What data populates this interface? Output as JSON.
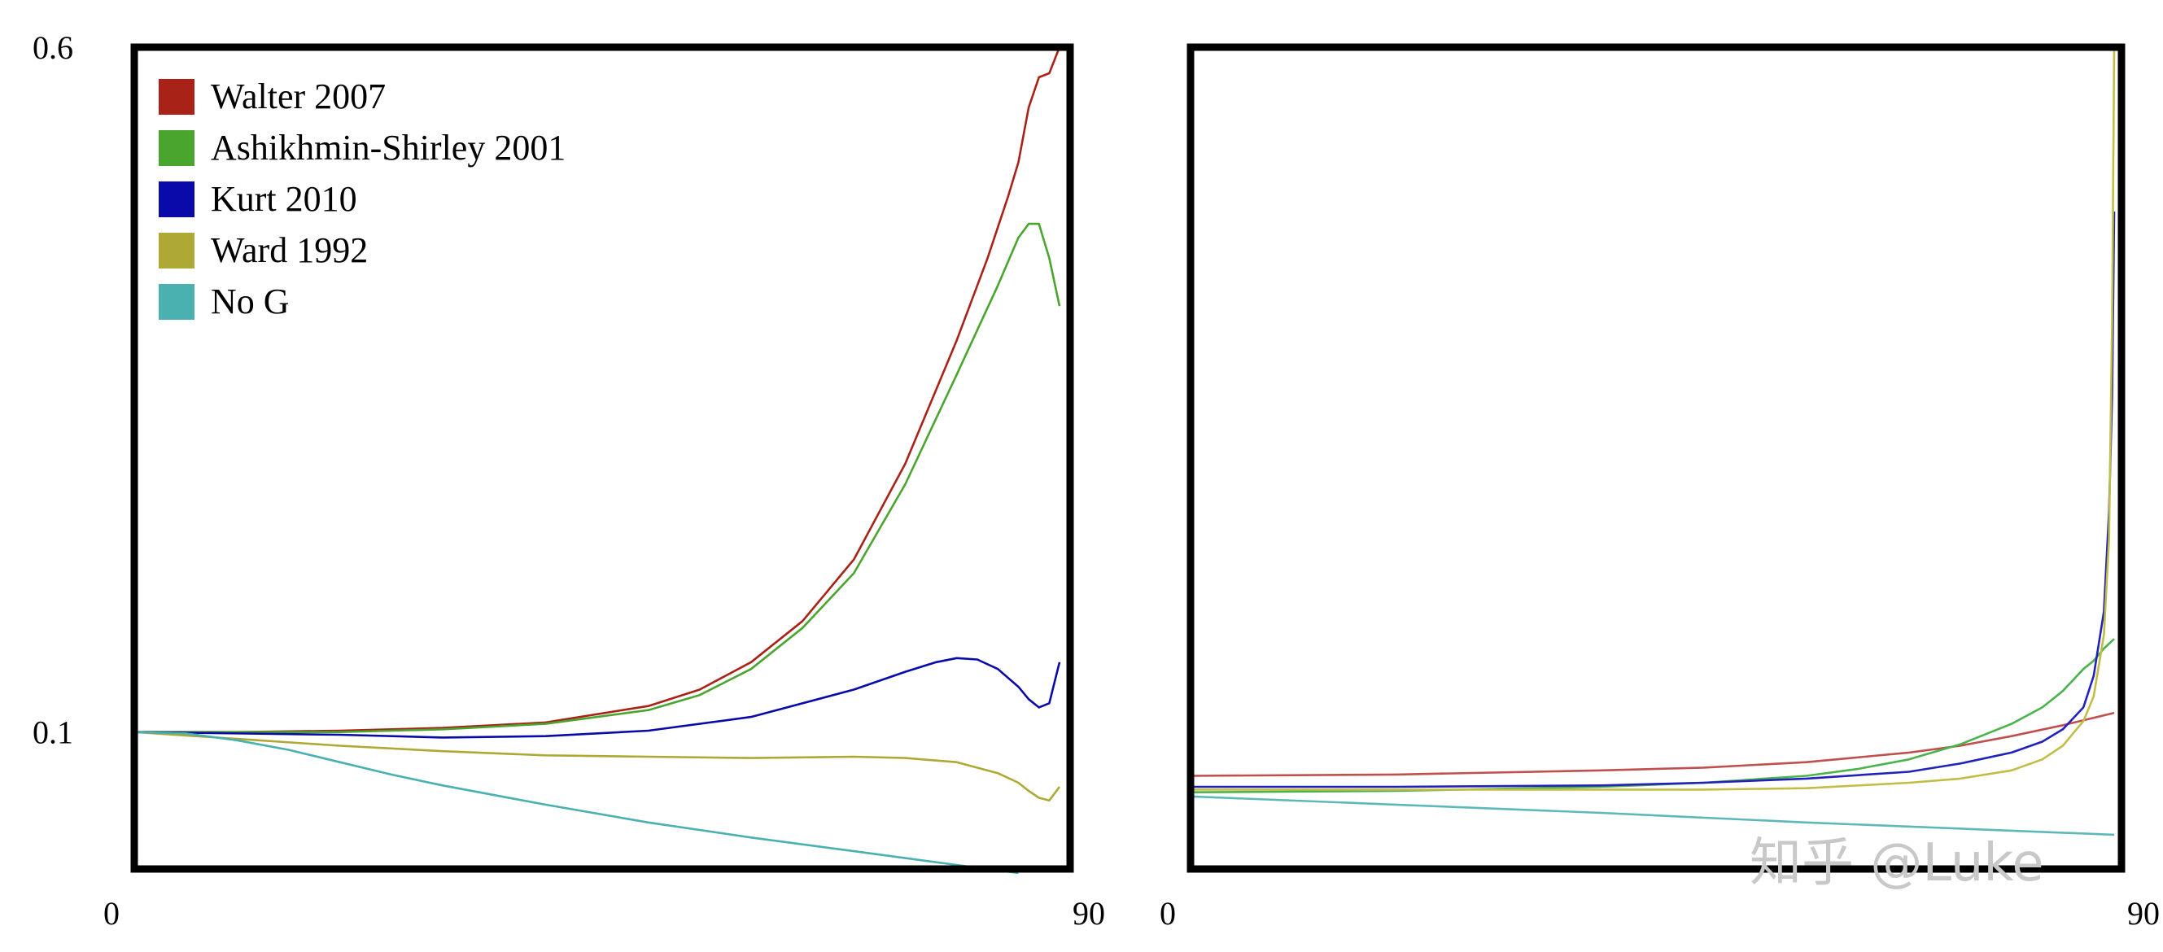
{
  "chart_data": [
    {
      "type": "line",
      "xlim": [
        0,
        90
      ],
      "ylim": [
        0,
        0.6
      ],
      "x_ticks": [
        "0",
        "90"
      ],
      "y_ticks": [
        {
          "value": 0.6,
          "label": "0.6"
        },
        {
          "value": 0.1,
          "label": "0.1"
        }
      ],
      "grid": false,
      "legend_position": "top-left",
      "series": [
        {
          "name": "Walter 2007",
          "color": "#a82218",
          "points": [
            [
              0,
              0.1
            ],
            [
              10,
              0.1
            ],
            [
              20,
              0.101
            ],
            [
              30,
              0.103
            ],
            [
              40,
              0.107
            ],
            [
              50,
              0.119
            ],
            [
              55,
              0.131
            ],
            [
              60,
              0.151
            ],
            [
              65,
              0.181
            ],
            [
              70,
              0.226
            ],
            [
              75,
              0.296
            ],
            [
              80,
              0.386
            ],
            [
              83,
              0.446
            ],
            [
              85,
              0.491
            ],
            [
              86,
              0.516
            ],
            [
              87,
              0.556
            ],
            [
              88,
              0.578
            ],
            [
              89,
              0.581
            ],
            [
              90,
              0.6
            ]
          ]
        },
        {
          "name": "Ashikhmin-Shirley 2001",
          "color": "#4aa52e",
          "points": [
            [
              0,
              0.1
            ],
            [
              20,
              0.1
            ],
            [
              30,
              0.102
            ],
            [
              40,
              0.106
            ],
            [
              50,
              0.116
            ],
            [
              55,
              0.127
            ],
            [
              60,
              0.146
            ],
            [
              65,
              0.176
            ],
            [
              70,
              0.216
            ],
            [
              75,
              0.281
            ],
            [
              80,
              0.361
            ],
            [
              84,
              0.426
            ],
            [
              86,
              0.461
            ],
            [
              87,
              0.471
            ],
            [
              88,
              0.471
            ],
            [
              89,
              0.446
            ],
            [
              90,
              0.411
            ]
          ]
        },
        {
          "name": "Kurt 2010",
          "color": "#0a0aaa",
          "points": [
            [
              0,
              0.1
            ],
            [
              20,
              0.098
            ],
            [
              30,
              0.096
            ],
            [
              40,
              0.097
            ],
            [
              50,
              0.101
            ],
            [
              60,
              0.111
            ],
            [
              70,
              0.131
            ],
            [
              75,
              0.144
            ],
            [
              78,
              0.151
            ],
            [
              80,
              0.154
            ],
            [
              82,
              0.153
            ],
            [
              84,
              0.146
            ],
            [
              86,
              0.133
            ],
            [
              87,
              0.124
            ],
            [
              88,
              0.118
            ],
            [
              89,
              0.121
            ],
            [
              90,
              0.151
            ]
          ]
        },
        {
          "name": "Ward 1992",
          "color": "#aea935",
          "points": [
            [
              0,
              0.1
            ],
            [
              10,
              0.095
            ],
            [
              20,
              0.09
            ],
            [
              30,
              0.086
            ],
            [
              40,
              0.083
            ],
            [
              50,
              0.082
            ],
            [
              60,
              0.081
            ],
            [
              70,
              0.082
            ],
            [
              75,
              0.081
            ],
            [
              80,
              0.078
            ],
            [
              84,
              0.07
            ],
            [
              86,
              0.063
            ],
            [
              87,
              0.057
            ],
            [
              88,
              0.052
            ],
            [
              89,
              0.05
            ],
            [
              90,
              0.06
            ]
          ]
        },
        {
          "name": "No G",
          "color": "#4bb0b0",
          "points": [
            [
              0,
              0.1
            ],
            [
              5,
              0.099
            ],
            [
              10,
              0.094
            ],
            [
              15,
              0.087
            ],
            [
              20,
              0.078
            ],
            [
              25,
              0.069
            ],
            [
              30,
              0.061
            ],
            [
              40,
              0.047
            ],
            [
              50,
              0.034
            ],
            [
              60,
              0.023
            ],
            [
              70,
              0.013
            ],
            [
              80,
              0.003
            ],
            [
              86,
              -0.003
            ]
          ]
        }
      ]
    },
    {
      "type": "line",
      "xlim": [
        0,
        90
      ],
      "ylim": [
        0,
        0.6
      ],
      "x_ticks": [
        "0",
        "90"
      ],
      "y_ticks": [],
      "grid": false,
      "series": [
        {
          "color": "#c0504d",
          "points": [
            [
              0,
              0.068
            ],
            [
              20,
              0.069
            ],
            [
              40,
              0.072
            ],
            [
              50,
              0.074
            ],
            [
              60,
              0.078
            ],
            [
              70,
              0.085
            ],
            [
              75,
              0.09
            ],
            [
              80,
              0.097
            ],
            [
              85,
              0.105
            ],
            [
              90,
              0.114
            ]
          ]
        },
        {
          "color": "#4bb34b",
          "points": [
            [
              0,
              0.056
            ],
            [
              20,
              0.057
            ],
            [
              40,
              0.06
            ],
            [
              50,
              0.063
            ],
            [
              60,
              0.068
            ],
            [
              65,
              0.073
            ],
            [
              70,
              0.08
            ],
            [
              75,
              0.091
            ],
            [
              80,
              0.106
            ],
            [
              83,
              0.118
            ],
            [
              85,
              0.13
            ],
            [
              87,
              0.146
            ],
            [
              88,
              0.152
            ],
            [
              89,
              0.161
            ],
            [
              90,
              0.168
            ]
          ]
        },
        {
          "color": "#2222bb",
          "points": [
            [
              0,
              0.06
            ],
            [
              20,
              0.06
            ],
            [
              40,
              0.061
            ],
            [
              50,
              0.063
            ],
            [
              60,
              0.066
            ],
            [
              70,
              0.071
            ],
            [
              75,
              0.077
            ],
            [
              80,
              0.085
            ],
            [
              83,
              0.093
            ],
            [
              85,
              0.102
            ],
            [
              87,
              0.118
            ],
            [
              88,
              0.141
            ],
            [
              89,
              0.188
            ],
            [
              89.5,
              0.261
            ],
            [
              89.8,
              0.346
            ],
            [
              90,
              0.48
            ]
          ]
        },
        {
          "color": "#c2bd45",
          "points": [
            [
              0,
              0.058
            ],
            [
              20,
              0.058
            ],
            [
              40,
              0.058
            ],
            [
              50,
              0.058
            ],
            [
              60,
              0.059
            ],
            [
              70,
              0.063
            ],
            [
              75,
              0.066
            ],
            [
              80,
              0.072
            ],
            [
              83,
              0.08
            ],
            [
              85,
              0.09
            ],
            [
              87,
              0.108
            ],
            [
              88,
              0.126
            ],
            [
              89,
              0.171
            ],
            [
              89.5,
              0.241
            ],
            [
              89.8,
              0.401
            ],
            [
              90,
              0.6
            ]
          ]
        },
        {
          "color": "#5fb8b8",
          "points": [
            [
              0,
              0.053
            ],
            [
              20,
              0.047
            ],
            [
              40,
              0.041
            ],
            [
              60,
              0.034
            ],
            [
              80,
              0.028
            ],
            [
              90,
              0.025
            ]
          ]
        }
      ]
    }
  ],
  "watermark": "知乎 @Luke"
}
